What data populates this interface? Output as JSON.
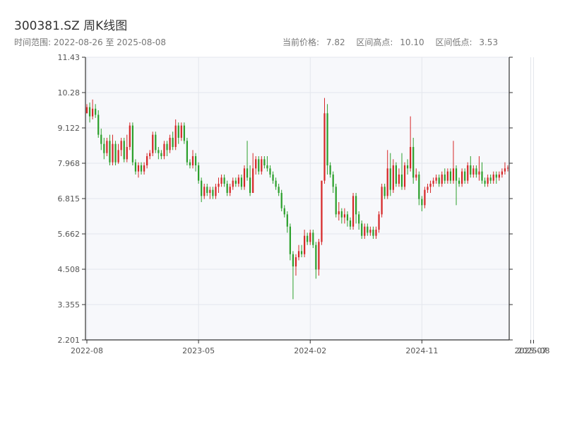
{
  "header": {
    "title": "300381.SZ 周K线图",
    "range_label": "时间范围:",
    "range_start": "2022-08-26",
    "range_sep": "至",
    "range_end": "2025-08-08",
    "current_price_label": "当前价格:",
    "current_price": "7.82",
    "high_label": "区间高点:",
    "high": "10.10",
    "low_label": "区间低点:",
    "low": "3.53"
  },
  "colors": {
    "up": "#d62728",
    "down": "#2ca02c",
    "plot_bg": "#f7f8fb",
    "grid": "#e3e6ec"
  },
  "chart_data": {
    "type": "candlestick",
    "ylim": [
      2.201,
      11.43
    ],
    "yticks": [
      "2.201",
      "3.355",
      "4.508",
      "5.662",
      "6.815",
      "7.968",
      "9.122",
      "10.28",
      "11.43"
    ],
    "xticks": [
      {
        "label": "2022-08",
        "x": 0
      },
      {
        "label": "2023-05",
        "x": 39
      },
      {
        "label": "2024-02",
        "x": 78
      },
      {
        "label": "2024-11",
        "x": 117
      },
      {
        "label": "2025-07",
        "x": 155
      },
      {
        "label": "2025-08",
        "x": 156
      }
    ],
    "candles": [
      [
        9.6,
        9.8,
        9.6,
        9.9
      ],
      [
        9.8,
        9.5,
        9.3,
        9.95
      ],
      [
        9.5,
        9.75,
        9.4,
        10.05
      ],
      [
        9.75,
        9.55,
        9.45,
        9.9
      ],
      [
        9.55,
        8.9,
        8.8,
        9.7
      ],
      [
        8.9,
        8.6,
        8.4,
        9.1
      ],
      [
        8.6,
        8.3,
        8.1,
        8.8
      ],
      [
        8.3,
        8.7,
        8.2,
        8.8
      ],
      [
        8.7,
        8.0,
        7.9,
        8.9
      ],
      [
        8.0,
        8.6,
        7.9,
        8.9
      ],
      [
        8.6,
        8.0,
        7.9,
        8.7
      ],
      [
        8.0,
        8.4,
        7.95,
        8.6
      ],
      [
        8.4,
        8.7,
        8.2,
        8.8
      ],
      [
        8.7,
        8.1,
        8.0,
        8.8
      ],
      [
        8.1,
        8.5,
        8.0,
        8.9
      ],
      [
        8.5,
        9.2,
        8.4,
        9.3
      ],
      [
        9.2,
        8.0,
        7.9,
        9.3
      ],
      [
        8.0,
        7.7,
        7.6,
        8.1
      ],
      [
        7.7,
        7.9,
        7.5,
        8.0
      ],
      [
        7.9,
        7.7,
        7.6,
        8.0
      ],
      [
        7.7,
        7.9,
        7.6,
        8.0
      ],
      [
        7.9,
        8.2,
        7.8,
        8.3
      ],
      [
        8.2,
        8.3,
        8.1,
        8.4
      ],
      [
        8.3,
        8.9,
        8.2,
        9.0
      ],
      [
        8.9,
        8.4,
        8.3,
        9.0
      ],
      [
        8.4,
        8.3,
        8.1,
        8.5
      ],
      [
        8.3,
        8.2,
        8.1,
        8.4
      ],
      [
        8.2,
        8.6,
        8.1,
        8.7
      ],
      [
        8.6,
        8.4,
        8.2,
        8.7
      ],
      [
        8.4,
        8.8,
        8.3,
        8.9
      ],
      [
        8.8,
        8.5,
        8.4,
        9.0
      ],
      [
        8.5,
        9.2,
        8.4,
        9.4
      ],
      [
        9.2,
        8.8,
        8.6,
        9.3
      ],
      [
        8.8,
        9.2,
        8.7,
        9.3
      ],
      [
        9.2,
        8.7,
        8.6,
        9.3
      ],
      [
        8.7,
        8.0,
        7.9,
        8.8
      ],
      [
        8.0,
        7.9,
        7.8,
        8.1
      ],
      [
        7.9,
        8.2,
        7.8,
        8.4
      ],
      [
        8.2,
        7.9,
        7.7,
        8.3
      ],
      [
        7.9,
        7.4,
        7.3,
        8.0
      ],
      [
        7.4,
        6.9,
        6.7,
        7.5
      ],
      [
        6.9,
        7.2,
        6.8,
        7.3
      ],
      [
        7.2,
        7.0,
        6.9,
        7.3
      ],
      [
        7.0,
        7.1,
        6.8,
        7.2
      ],
      [
        7.1,
        6.9,
        6.8,
        7.2
      ],
      [
        6.9,
        7.2,
        6.8,
        7.3
      ],
      [
        7.2,
        7.3,
        7.0,
        7.5
      ],
      [
        7.3,
        7.5,
        7.2,
        7.6
      ],
      [
        7.5,
        7.3,
        7.2,
        7.6
      ],
      [
        7.3,
        7.0,
        6.9,
        7.4
      ],
      [
        7.0,
        7.2,
        6.9,
        7.3
      ],
      [
        7.2,
        7.4,
        7.1,
        7.5
      ],
      [
        7.4,
        7.3,
        7.2,
        7.5
      ],
      [
        7.3,
        7.5,
        7.2,
        7.6
      ],
      [
        7.5,
        7.2,
        7.1,
        7.6
      ],
      [
        7.2,
        7.8,
        7.1,
        7.9
      ],
      [
        7.8,
        7.5,
        7.4,
        8.7
      ],
      [
        7.5,
        7.0,
        6.9,
        7.9
      ],
      [
        7.0,
        7.8,
        7.0,
        8.3
      ],
      [
        7.8,
        8.1,
        7.6,
        8.2
      ],
      [
        8.1,
        7.7,
        7.6,
        8.2
      ],
      [
        7.7,
        8.1,
        7.6,
        8.2
      ],
      [
        8.1,
        7.9,
        7.8,
        8.2
      ],
      [
        7.9,
        7.8,
        7.7,
        8.2
      ],
      [
        7.8,
        7.6,
        7.5,
        7.9
      ],
      [
        7.6,
        7.4,
        7.3,
        7.7
      ],
      [
        7.4,
        7.2,
        7.1,
        7.5
      ],
      [
        7.2,
        7.0,
        6.9,
        7.3
      ],
      [
        7.0,
        6.5,
        6.4,
        7.1
      ],
      [
        6.5,
        6.3,
        6.2,
        6.6
      ],
      [
        6.3,
        5.9,
        5.7,
        6.4
      ],
      [
        5.9,
        5.0,
        4.8,
        6.0
      ],
      [
        5.0,
        4.6,
        3.53,
        5.1
      ],
      [
        4.6,
        4.9,
        4.3,
        5.0
      ],
      [
        4.9,
        5.1,
        4.8,
        5.3
      ],
      [
        5.1,
        5.0,
        4.9,
        5.3
      ],
      [
        5.0,
        5.6,
        4.9,
        5.8
      ],
      [
        5.6,
        5.4,
        5.3,
        5.7
      ],
      [
        5.4,
        5.7,
        5.3,
        5.8
      ],
      [
        5.7,
        5.3,
        5.2,
        5.8
      ],
      [
        5.3,
        4.5,
        4.2,
        5.4
      ],
      [
        4.5,
        5.4,
        4.3,
        5.5
      ],
      [
        5.4,
        7.4,
        5.3,
        7.4
      ],
      [
        7.4,
        9.6,
        7.3,
        10.1
      ],
      [
        9.6,
        7.9,
        7.6,
        9.9
      ],
      [
        7.9,
        7.6,
        7.5,
        8.0
      ],
      [
        7.6,
        7.2,
        7.0,
        7.7
      ],
      [
        7.2,
        6.3,
        6.2,
        7.3
      ],
      [
        6.3,
        6.4,
        6.1,
        6.7
      ],
      [
        6.4,
        6.2,
        6.0,
        6.5
      ],
      [
        6.2,
        6.3,
        6.0,
        6.5
      ],
      [
        6.3,
        6.1,
        5.9,
        6.4
      ],
      [
        6.1,
        5.9,
        5.8,
        6.2
      ],
      [
        5.9,
        6.9,
        5.8,
        7.0
      ],
      [
        6.9,
        6.3,
        6.0,
        7.0
      ],
      [
        6.3,
        6.0,
        5.8,
        6.4
      ],
      [
        6.0,
        5.6,
        5.5,
        6.1
      ],
      [
        5.6,
        5.9,
        5.5,
        6.0
      ],
      [
        5.9,
        5.7,
        5.6,
        6.0
      ],
      [
        5.7,
        5.8,
        5.6,
        5.9
      ],
      [
        5.8,
        5.6,
        5.5,
        5.9
      ],
      [
        5.6,
        5.8,
        5.5,
        5.9
      ],
      [
        5.8,
        6.3,
        5.7,
        6.4
      ],
      [
        6.3,
        7.2,
        6.2,
        7.3
      ],
      [
        7.2,
        6.9,
        6.8,
        7.3
      ],
      [
        6.9,
        7.8,
        6.8,
        8.4
      ],
      [
        7.8,
        7.1,
        6.9,
        8.3
      ],
      [
        7.1,
        7.9,
        7.0,
        8.1
      ],
      [
        7.9,
        7.3,
        7.2,
        8.0
      ],
      [
        7.3,
        7.6,
        7.2,
        7.8
      ],
      [
        7.6,
        7.2,
        7.1,
        8.3
      ],
      [
        7.2,
        7.9,
        7.1,
        8.0
      ],
      [
        7.9,
        7.8,
        7.6,
        8.1
      ],
      [
        7.8,
        8.5,
        7.7,
        9.5
      ],
      [
        8.5,
        7.5,
        7.3,
        8.8
      ],
      [
        7.5,
        7.6,
        7.4,
        7.8
      ],
      [
        7.6,
        6.8,
        6.6,
        7.7
      ],
      [
        6.8,
        6.6,
        6.4,
        6.9
      ],
      [
        6.6,
        7.1,
        6.5,
        7.2
      ],
      [
        7.1,
        7.2,
        7.0,
        7.3
      ],
      [
        7.2,
        7.3,
        7.0,
        7.4
      ],
      [
        7.3,
        7.4,
        7.2,
        7.5
      ],
      [
        7.4,
        7.5,
        7.3,
        7.6
      ],
      [
        7.5,
        7.3,
        7.2,
        7.6
      ],
      [
        7.3,
        7.6,
        7.2,
        7.7
      ],
      [
        7.6,
        7.4,
        7.3,
        7.8
      ],
      [
        7.4,
        7.7,
        7.3,
        7.8
      ],
      [
        7.7,
        7.4,
        7.3,
        7.8
      ],
      [
        7.4,
        7.8,
        7.3,
        8.7
      ],
      [
        7.8,
        7.4,
        6.6,
        7.9
      ],
      [
        7.4,
        7.3,
        7.2,
        7.5
      ],
      [
        7.3,
        7.7,
        7.2,
        7.8
      ],
      [
        7.7,
        7.4,
        7.3,
        7.8
      ],
      [
        7.4,
        7.9,
        7.3,
        8.0
      ],
      [
        7.9,
        7.6,
        7.5,
        8.2
      ],
      [
        7.6,
        7.8,
        7.5,
        7.9
      ],
      [
        7.8,
        7.6,
        7.5,
        7.9
      ],
      [
        7.6,
        7.7,
        7.4,
        8.2
      ],
      [
        7.7,
        7.4,
        7.3,
        8.0
      ],
      [
        7.4,
        7.3,
        7.2,
        7.5
      ],
      [
        7.3,
        7.5,
        7.2,
        7.6
      ],
      [
        7.5,
        7.4,
        7.3,
        7.6
      ],
      [
        7.4,
        7.6,
        7.3,
        7.7
      ],
      [
        7.6,
        7.5,
        7.3,
        7.7
      ],
      [
        7.5,
        7.6,
        7.4,
        7.7
      ],
      [
        7.6,
        7.7,
        7.5,
        7.8
      ],
      [
        7.7,
        7.8,
        7.6,
        8.0
      ],
      [
        7.8,
        7.82,
        7.7,
        7.9
      ]
    ]
  }
}
